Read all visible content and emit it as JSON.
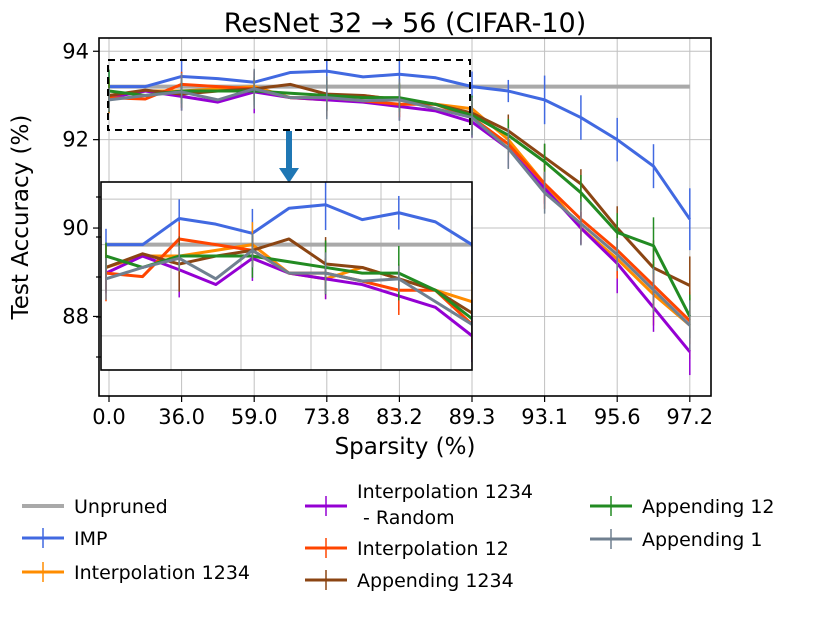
{
  "chart_data": {
    "type": "line",
    "title": "ResNet 32 → 56 (CIFAR-10)",
    "xlabel": "Sparsity (%)",
    "ylabel": "Test Accuracy (%)",
    "categories": [
      "0.0",
      "",
      "36.0",
      "",
      "59.0",
      "",
      "73.8",
      "",
      "83.2",
      "",
      "89.3",
      "",
      "93.1",
      "",
      "95.6",
      "",
      "97.2"
    ],
    "ylim": [
      86.2,
      94.3
    ],
    "yticks": [
      "94",
      "92",
      "90",
      "88"
    ],
    "grid": true,
    "legend_position": "bottom",
    "series": [
      {
        "name": "Unpruned",
        "color": "#a9a9a9",
        "values": [
          93.2,
          93.2,
          93.2,
          93.2,
          93.2,
          93.2,
          93.2,
          93.2,
          93.2,
          93.2,
          93.2,
          93.2,
          93.2,
          93.2,
          93.2,
          93.2,
          93.2
        ]
      },
      {
        "name": "IMP",
        "color": "#4169e1",
        "values": [
          93.2,
          93.2,
          93.43,
          93.38,
          93.3,
          93.52,
          93.55,
          93.42,
          93.48,
          93.4,
          93.2,
          93.1,
          92.9,
          92.5,
          92.0,
          91.4,
          90.2
        ]
      },
      {
        "name": "Interpolation 1234",
        "color": "#ff8c00",
        "values": [
          93.0,
          93.1,
          93.1,
          93.15,
          93.2,
          92.95,
          92.9,
          93.0,
          92.9,
          92.8,
          92.7,
          92.0,
          91.0,
          90.0,
          89.3,
          88.5,
          87.8
        ]
      },
      {
        "name": "Interpolation 1234\n - Random",
        "color": "#9400d3",
        "values": [
          92.95,
          93.1,
          92.98,
          92.85,
          93.08,
          92.95,
          92.9,
          92.85,
          92.75,
          92.65,
          92.4,
          91.8,
          90.9,
          90.0,
          89.2,
          88.2,
          87.2
        ]
      },
      {
        "name": "Interpolation 12",
        "color": "#ff4500",
        "values": [
          92.95,
          92.92,
          93.25,
          93.2,
          93.15,
          92.95,
          92.95,
          92.88,
          92.8,
          92.8,
          92.5,
          91.9,
          91.0,
          90.2,
          89.5,
          88.7,
          87.9
        ]
      },
      {
        "name": "Appending 1234",
        "color": "#8b4513",
        "values": [
          93.0,
          93.12,
          93.03,
          93.1,
          93.15,
          93.25,
          93.03,
          93.0,
          92.9,
          92.8,
          92.6,
          92.2,
          91.6,
          91.0,
          90.0,
          89.1,
          88.7
        ]
      },
      {
        "name": "Appending 12",
        "color": "#228b22",
        "values": [
          93.1,
          93.0,
          93.1,
          93.1,
          93.1,
          93.05,
          93.0,
          92.95,
          92.95,
          92.8,
          92.55,
          92.1,
          91.5,
          90.8,
          89.9,
          89.6,
          88.0
        ]
      },
      {
        "name": "Appending 1",
        "color": "#708090",
        "values": [
          92.9,
          93.0,
          93.08,
          92.9,
          93.15,
          92.95,
          92.95,
          92.88,
          92.9,
          92.7,
          92.5,
          91.8,
          90.8,
          90.1,
          89.4,
          88.6,
          87.8
        ]
      }
    ]
  }
}
